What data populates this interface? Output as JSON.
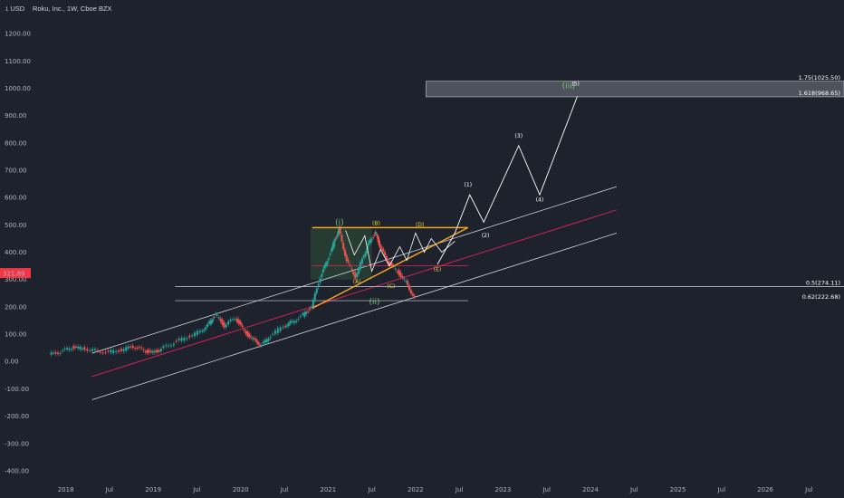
{
  "header": {
    "currency": "USD",
    "symbol_line": "Roku, Inc., 1W, Cboe BZX"
  },
  "price_badge": {
    "value": "321.89",
    "price": 321.89,
    "color": "#f23645"
  },
  "colors": {
    "background": "#1e222d",
    "channel": "#d1d4dc",
    "mid_channel": "#e0245e",
    "triangle": "#f5a623",
    "projection": "#ffffff",
    "candle_up": "#26a69a",
    "candle_down": "#ef5350",
    "fib_zone": "#8a8f98"
  },
  "chart_data": {
    "type": "candlestick",
    "ylim": [
      -420,
      1250
    ],
    "y_ticks": [
      "1200.00",
      "1100.00",
      "1000.00",
      "900.00",
      "800.00",
      "700.00",
      "600.00",
      "500.00",
      "400.00",
      "300.00",
      "200.00",
      "100.00",
      "0.00",
      "-100.00",
      "-200.00",
      "-300.00",
      "-400.00"
    ],
    "y_tick_values": [
      1200,
      1100,
      1000,
      900,
      800,
      700,
      600,
      500,
      400,
      300,
      200,
      100,
      0,
      -100,
      -200,
      -300,
      -400
    ],
    "xlim": [
      2017.6,
      2026.9
    ],
    "x_ticks": [
      "2018",
      "Jul",
      "2019",
      "Jul",
      "2020",
      "Jul",
      "2021",
      "Jul",
      "2022",
      "Jul",
      "2023",
      "Jul",
      "2024",
      "Jul",
      "2025",
      "Jul",
      "2026",
      "Jul"
    ],
    "x_tick_values": [
      2018.0,
      2018.5,
      2019.0,
      2019.5,
      2020.0,
      2020.5,
      2021.0,
      2021.5,
      2022.0,
      2022.5,
      2023.0,
      2023.5,
      2024.0,
      2024.5,
      2025.0,
      2025.5,
      2026.0,
      2026.5
    ],
    "price_path": [
      [
        2017.82,
        25
      ],
      [
        2017.95,
        35
      ],
      [
        2018.08,
        52
      ],
      [
        2018.2,
        48
      ],
      [
        2018.35,
        40
      ],
      [
        2018.5,
        35
      ],
      [
        2018.65,
        42
      ],
      [
        2018.78,
        55
      ],
      [
        2018.9,
        40
      ],
      [
        2019.0,
        32
      ],
      [
        2019.1,
        45
      ],
      [
        2019.25,
        70
      ],
      [
        2019.4,
        90
      ],
      [
        2019.55,
        110
      ],
      [
        2019.65,
        140
      ],
      [
        2019.72,
        175
      ],
      [
        2019.82,
        130
      ],
      [
        2019.95,
        160
      ],
      [
        2020.05,
        110
      ],
      [
        2020.15,
        80
      ],
      [
        2020.25,
        60
      ],
      [
        2020.35,
        95
      ],
      [
        2020.5,
        130
      ],
      [
        2020.6,
        145
      ],
      [
        2020.72,
        170
      ],
      [
        2020.82,
        200
      ],
      [
        2020.92,
        310
      ],
      [
        2021.0,
        370
      ],
      [
        2021.08,
        440
      ],
      [
        2021.13,
        485
      ],
      [
        2021.22,
        370
      ],
      [
        2021.32,
        310
      ],
      [
        2021.42,
        390
      ],
      [
        2021.48,
        440
      ],
      [
        2021.55,
        470
      ],
      [
        2021.6,
        420
      ],
      [
        2021.7,
        360
      ],
      [
        2021.8,
        330
      ],
      [
        2021.9,
        290
      ],
      [
        2022.0,
        230
      ]
    ],
    "fib_levels": [
      {
        "label": "1.75(1025.50)",
        "value": 1025.5
      },
      {
        "label": "1.618(968.65)",
        "value": 968.65
      },
      {
        "label": "0.5(274.11)",
        "value": 274.11
      },
      {
        "label": "0.62(222.68)",
        "value": 222.68
      }
    ],
    "wave_labels": [
      {
        "text": "(i)",
        "x": 2021.13,
        "y": 500,
        "style": "green"
      },
      {
        "text": "(ii)",
        "x": 2021.53,
        "y": 210,
        "style": "green"
      },
      {
        "text": "(iii)",
        "x": 2023.75,
        "y": 1000,
        "style": "green"
      },
      {
        "text": "(A)",
        "x": 2021.33,
        "y": 285,
        "style": "yellow"
      },
      {
        "text": "(B)",
        "x": 2021.55,
        "y": 500,
        "style": "yellow"
      },
      {
        "text": "(C)",
        "x": 2021.72,
        "y": 270,
        "style": "yellow"
      },
      {
        "text": "(D)",
        "x": 2022.05,
        "y": 495,
        "style": "yellow"
      },
      {
        "text": "(E)",
        "x": 2022.25,
        "y": 330,
        "style": "yellow"
      },
      {
        "text": "(1)",
        "x": 2022.6,
        "y": 640,
        "style": "white"
      },
      {
        "text": "(2)",
        "x": 2022.8,
        "y": 455,
        "style": "white"
      },
      {
        "text": "(3)",
        "x": 2023.18,
        "y": 820,
        "style": "white"
      },
      {
        "text": "(4)",
        "x": 2023.42,
        "y": 585,
        "style": "white"
      },
      {
        "text": "(5)",
        "x": 2023.83,
        "y": 1010,
        "style": "white"
      }
    ],
    "projection_path": [
      [
        2022.25,
        355
      ],
      [
        2022.45,
        470
      ],
      [
        2022.62,
        610
      ],
      [
        2022.78,
        510
      ],
      [
        2023.18,
        790
      ],
      [
        2023.42,
        610
      ],
      [
        2023.85,
        970
      ]
    ],
    "triangle_path": [
      [
        2021.2,
        480
      ],
      [
        2021.3,
        390
      ],
      [
        2021.42,
        460
      ],
      [
        2021.5,
        330
      ],
      [
        2021.6,
        410
      ],
      [
        2021.7,
        350
      ],
      [
        2021.82,
        420
      ],
      [
        2021.9,
        370
      ],
      [
        2022.0,
        470
      ],
      [
        2022.1,
        400
      ],
      [
        2022.18,
        450
      ],
      [
        2022.3,
        400
      ],
      [
        2022.45,
        440
      ]
    ],
    "triangle_top": [
      [
        2020.82,
        490
      ],
      [
        2022.6,
        490
      ]
    ],
    "triangle_bottom": [
      [
        2020.82,
        195
      ],
      [
        2022.6,
        490
      ]
    ],
    "box_zone": {
      "x0": 2020.8,
      "x1": 2021.5,
      "y0": 300,
      "y1": 490
    },
    "red_hline": {
      "x0": 2020.82,
      "x1": 2022.6,
      "y": 350
    },
    "fib_mid_lines": [
      {
        "x0": 2019.25,
        "x1": 2026.9,
        "y": 274.11
      },
      {
        "x0": 2019.25,
        "x1": 2022.6,
        "y": 222.68
      }
    ],
    "channel_upper": [
      [
        2018.3,
        30
      ],
      [
        2024.3,
        640
      ]
    ],
    "channel_mid": [
      [
        2018.3,
        -55
      ],
      [
        2024.3,
        555
      ]
    ],
    "channel_lower": [
      [
        2018.3,
        -140
      ],
      [
        2024.3,
        470
      ]
    ],
    "target_zone": {
      "x0": 2022.12,
      "x1": 2026.9,
      "y0": 968.65,
      "y1": 1025.5
    }
  }
}
